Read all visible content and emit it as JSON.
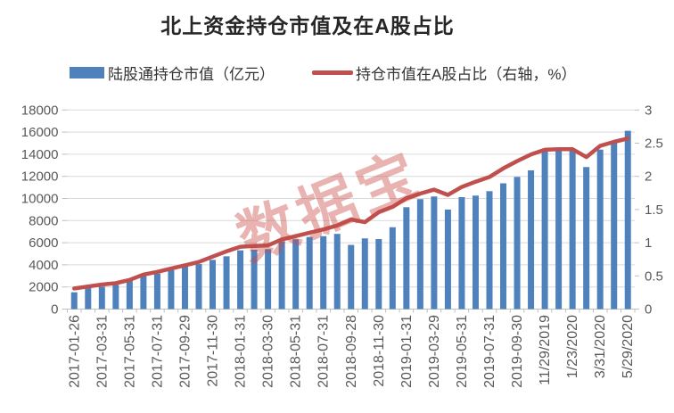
{
  "title": "北上资金持仓市值及在A股占比",
  "watermark": "数据宝",
  "legend": [
    {
      "label": "陆股通持仓市值（亿元）",
      "swatch": "bar",
      "color": "#4F81BD"
    },
    {
      "label": "持仓市值在A股占比（右轴，%）",
      "swatch": "line",
      "color": "#C0504D"
    }
  ],
  "chart_data": {
    "type": "bar",
    "subtype": "bar+line combo, dual axis",
    "title": "北上资金持仓市值及在A股占比",
    "n_points": 41,
    "x_tick_labels": [
      "2017-01-26",
      "2017-03-31",
      "2017-05-31",
      "2017-07-31",
      "2017-09-29",
      "2017-11-30",
      "2018-01-31",
      "2018-03-30",
      "2018-05-31",
      "2018-07-31",
      "2018-09-28",
      "2018-11-30",
      "2019-01-31",
      "2019-03-29",
      "2019-05-31",
      "2019-07-31",
      "2019-09-30",
      "11/29/2019",
      "1/23/2020",
      "3/31/2020",
      "5/29/2020"
    ],
    "x_tick_every": 2,
    "series": [
      {
        "name": "陆股通持仓市值（亿元）",
        "type": "bar",
        "y_axis": "left",
        "color": "#4F81BD",
        "values": [
          1520,
          1900,
          2030,
          2190,
          2540,
          3000,
          3210,
          3530,
          3830,
          4070,
          4450,
          4770,
          5310,
          5360,
          5420,
          6110,
          6310,
          6520,
          6590,
          6800,
          5800,
          6390,
          6330,
          7400,
          9210,
          9940,
          10180,
          9000,
          10120,
          10260,
          10660,
          11370,
          11950,
          12540,
          14370,
          14290,
          14290,
          12840,
          14420,
          15230,
          16120
        ]
      },
      {
        "name": "持仓市值在A股占比（右轴，%）",
        "type": "line",
        "y_axis": "right",
        "color": "#C0504D",
        "values": [
          0.31,
          0.34,
          0.37,
          0.39,
          0.44,
          0.52,
          0.56,
          0.61,
          0.66,
          0.71,
          0.79,
          0.87,
          0.94,
          0.95,
          0.96,
          1.05,
          1.1,
          1.15,
          1.2,
          1.26,
          1.35,
          1.31,
          1.46,
          1.54,
          1.67,
          1.74,
          1.8,
          1.72,
          1.84,
          1.92,
          1.99,
          2.12,
          2.23,
          2.33,
          2.4,
          2.41,
          2.41,
          2.29,
          2.46,
          2.52,
          2.57
        ]
      }
    ],
    "left_axis": {
      "min": 0,
      "max": 18000,
      "step": 2000,
      "tick_labels": [
        "0",
        "2000",
        "4000",
        "6000",
        "8000",
        "10000",
        "12000",
        "14000",
        "16000",
        "18000"
      ]
    },
    "right_axis": {
      "min": 0,
      "max": 3,
      "step": 0.5,
      "tick_labels": [
        "0",
        "0.5",
        "1",
        "1.5",
        "2",
        "2.5",
        "3"
      ]
    },
    "grid": true,
    "legend_position": "top",
    "gridline_color": "#D9D9D9",
    "axis_line_color": "#BFBFBF",
    "axis_text_color": "#595959"
  }
}
